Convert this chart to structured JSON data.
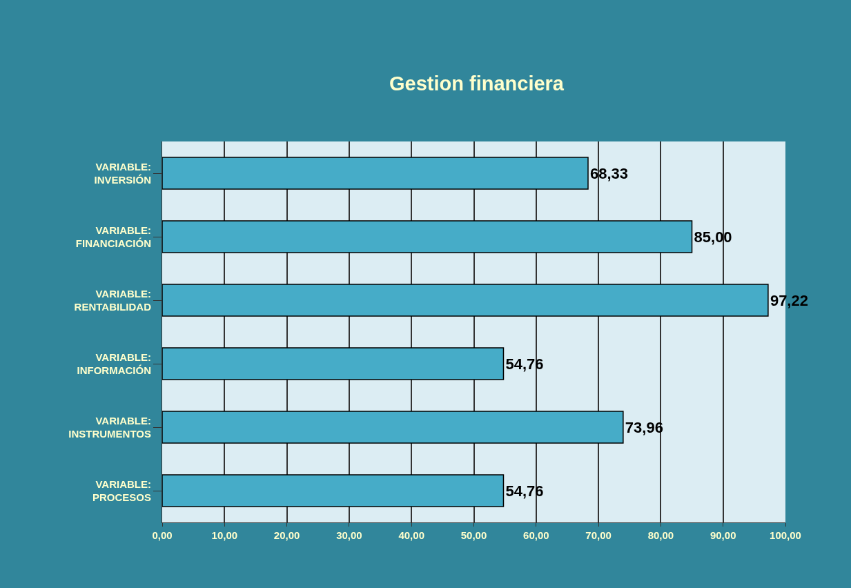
{
  "chart_data": {
    "type": "bar",
    "orientation": "horizontal",
    "title": "Gestion financiera",
    "categories": [
      "VARIABLE:\nINVERSIÓN",
      "VARIABLE:\nFINANCIACIÓN",
      "VARIABLE:\nRENTABILIDAD",
      "VARIABLE:\nINFORMACIÓN",
      "VARIABLE:\nINSTRUMENTOS",
      "VARIABLE:\nPROCESOS"
    ],
    "values": [
      68.33,
      85.0,
      97.22,
      54.76,
      73.96,
      54.76
    ],
    "value_labels": [
      "68,33",
      "85,00",
      "97,22",
      "54,76",
      "73,96",
      "54,76"
    ],
    "color": "#46acc8",
    "xlim": [
      0,
      100
    ],
    "xticks": [
      {
        "value": 0,
        "label": "0,00"
      },
      {
        "value": 10,
        "label": "10,00"
      },
      {
        "value": 20,
        "label": "20,00"
      },
      {
        "value": 30,
        "label": "30,00"
      },
      {
        "value": 40,
        "label": "40,00"
      },
      {
        "value": 50,
        "label": "50,00"
      },
      {
        "value": 60,
        "label": "60,00"
      },
      {
        "value": 70,
        "label": "70,00"
      },
      {
        "value": 80,
        "label": "80,00"
      },
      {
        "value": 90,
        "label": "90,00"
      },
      {
        "value": 100,
        "label": "100,00"
      }
    ],
    "grid": "x",
    "legend": false
  }
}
